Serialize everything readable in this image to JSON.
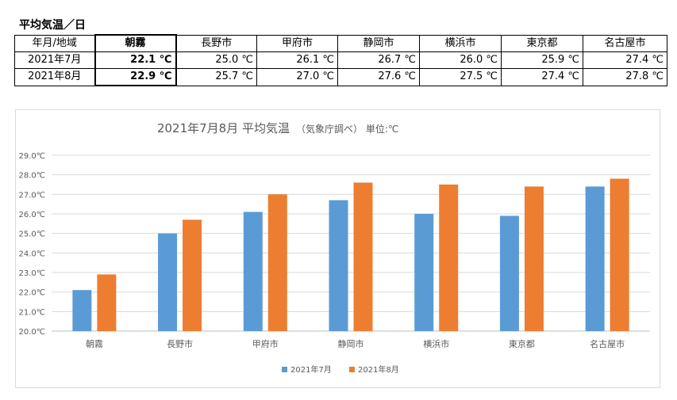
{
  "table": {
    "title": "平均気温／日",
    "header_label": "年月/地域",
    "cities": [
      "朝霧",
      "長野市",
      "甲府市",
      "静岡市",
      "横浜市",
      "東京都",
      "名古屋市"
    ],
    "rows": [
      {
        "label": "2021年7月",
        "cells": [
          "22.1 ℃",
          "25.0 ℃",
          "26.1 ℃",
          "26.7 ℃",
          "26.0 ℃",
          "25.9 ℃",
          "27.4 ℃"
        ]
      },
      {
        "label": "2021年8月",
        "cells": [
          "22.9 ℃",
          "25.7 ℃",
          "27.0 ℃",
          "27.6 ℃",
          "27.5 ℃",
          "27.4 ℃",
          "27.8 ℃"
        ]
      }
    ],
    "highlight_city": "朝霧"
  },
  "chart_data": {
    "type": "bar",
    "title": "2021年7月8月 平均気温",
    "subtitle": "（気象庁調べ） 単位:℃",
    "categories": [
      "朝霧",
      "長野市",
      "甲府市",
      "静岡市",
      "横浜市",
      "東京都",
      "名古屋市"
    ],
    "series": [
      {
        "name": "2021年7月",
        "values": [
          22.1,
          25.0,
          26.1,
          26.7,
          26.0,
          25.9,
          27.4
        ],
        "color": "#5b9bd5"
      },
      {
        "name": "2021年8月",
        "values": [
          22.9,
          25.7,
          27.0,
          27.6,
          27.5,
          27.4,
          27.8
        ],
        "color": "#ed7d31"
      }
    ],
    "ylim": [
      20,
      29
    ],
    "yticks": [
      "20.0℃",
      "21.0℃",
      "22.0℃",
      "23.0℃",
      "24.0℃",
      "25.0℃",
      "26.0℃",
      "27.0℃",
      "28.0℃",
      "29.0℃"
    ],
    "grid": true,
    "legend_position": "bottom"
  }
}
